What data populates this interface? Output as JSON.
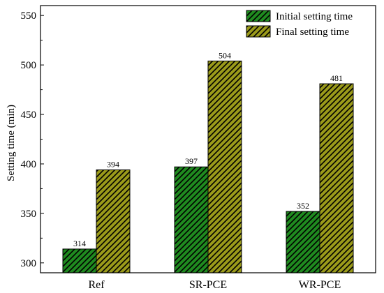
{
  "chart_data": {
    "type": "bar",
    "title": "",
    "xlabel": "",
    "ylabel": "Setting time (min)",
    "ylim": [
      290,
      560
    ],
    "yticks": [
      300,
      350,
      400,
      450,
      500,
      550
    ],
    "categories": [
      "Ref",
      "SR-PCE",
      "WR-PCE"
    ],
    "series": [
      {
        "name": "Initial setting time",
        "values": [
          314,
          397,
          352
        ],
        "color": "#1f8a1f",
        "hatch": "diagonal"
      },
      {
        "name": "Final setting time",
        "values": [
          394,
          504,
          481
        ],
        "color": "#9a9a1a",
        "hatch": "diagonal"
      }
    ],
    "legend_position": "top-right",
    "grid": false
  }
}
